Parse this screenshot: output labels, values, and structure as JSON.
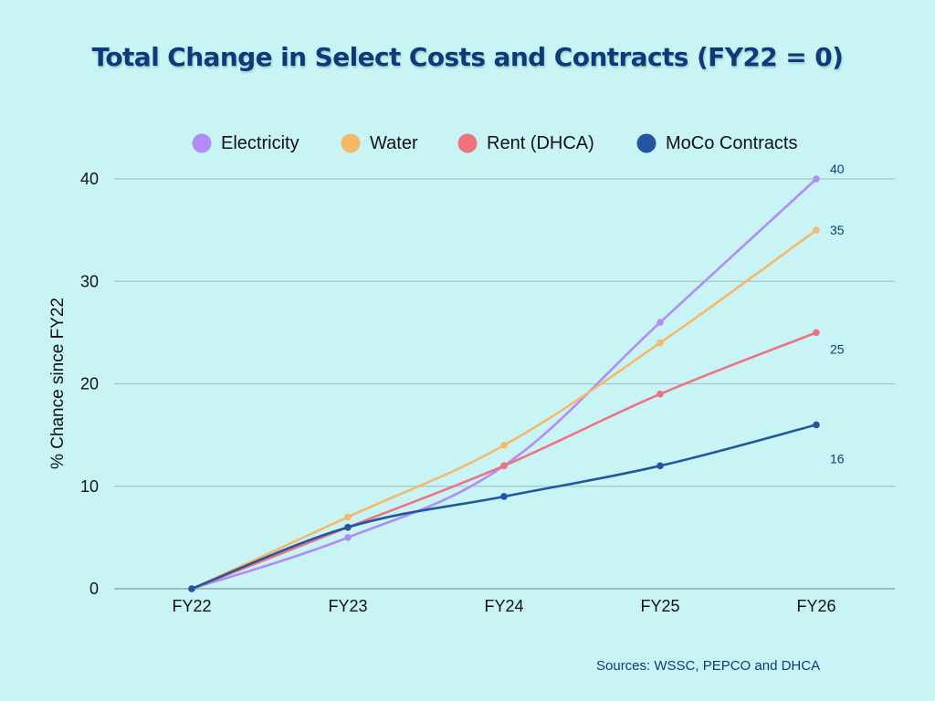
{
  "chart_data": {
    "type": "line",
    "title": "Total Change in Select Costs and Contracts (FY22 = 0)",
    "xlabel": "",
    "ylabel": "% Chance since FY22",
    "categories": [
      "FY22",
      "FY23",
      "FY24",
      "FY25",
      "FY26"
    ],
    "ylim": [
      0,
      40
    ],
    "yticks": [
      0,
      10,
      20,
      30,
      40
    ],
    "grid": true,
    "legend_position": "top",
    "series": [
      {
        "name": "Electricity",
        "color": "#b18cf4",
        "values": [
          0,
          5,
          12,
          26,
          40
        ],
        "end_label": "40",
        "smooth": true
      },
      {
        "name": "Water",
        "color": "#f5b96a",
        "values": [
          0,
          7,
          14,
          24,
          35
        ],
        "end_label": "35",
        "smooth": true
      },
      {
        "name": "Rent (DHCA)",
        "color": "#ee7380",
        "values": [
          0,
          6,
          12,
          19,
          25
        ],
        "end_label": "25",
        "smooth": true
      },
      {
        "name": "MoCo Contracts",
        "color": "#22569e",
        "values": [
          0,
          6,
          9,
          12,
          16
        ],
        "end_label": "16",
        "smooth": true
      }
    ],
    "source_note": "Sources: WSSC, PEPCO and DHCA"
  }
}
